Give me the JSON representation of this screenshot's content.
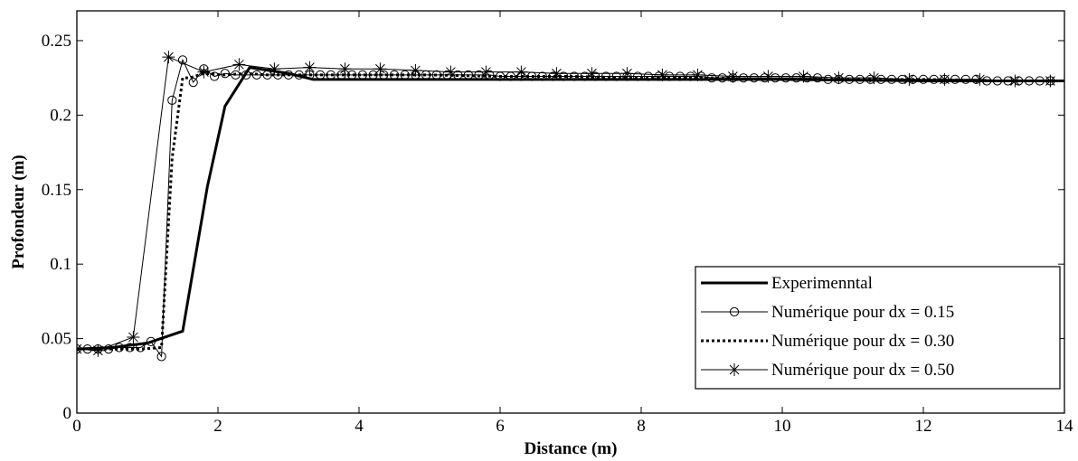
{
  "chart_data": {
    "type": "line",
    "title": "",
    "xlabel": "Distance (m)",
    "ylabel": "Profondeur (m)",
    "xlim": [
      0,
      14
    ],
    "ylim": [
      0,
      0.27
    ],
    "xticks": [
      0,
      2,
      4,
      6,
      8,
      10,
      12,
      14
    ],
    "xtick_labels": [
      "0",
      "2",
      "4",
      "6",
      "8",
      "10",
      "12",
      "14"
    ],
    "yticks": [
      0,
      0.05,
      0.1,
      0.15,
      0.2,
      0.25
    ],
    "ytick_labels": [
      "0",
      "0.05",
      "0.1",
      "0.15",
      "0.2",
      "0.25"
    ],
    "grid": false,
    "legend_position": "bottom-right",
    "series": [
      {
        "name": "Experimenntal",
        "style": "thick-solid",
        "marker": "none",
        "x": [
          0,
          0.5,
          1.0,
          1.5,
          1.85,
          2.1,
          2.45,
          3.0,
          3.35,
          4.0,
          6.0,
          8.0,
          10.0,
          12.0,
          14.0
        ],
        "y": [
          0.043,
          0.044,
          0.047,
          0.055,
          0.152,
          0.206,
          0.232,
          0.228,
          0.224,
          0.224,
          0.224,
          0.224,
          0.224,
          0.223,
          0.223
        ]
      },
      {
        "name": "Numérique pour dx = 0.15",
        "style": "thin-solid",
        "marker": "circle",
        "x": [
          0,
          0.15,
          0.3,
          0.45,
          0.6,
          0.75,
          0.9,
          1.05,
          1.2,
          1.35,
          1.5,
          1.65,
          1.8,
          1.95,
          2.1,
          2.25,
          2.4,
          2.55,
          2.7,
          2.85,
          3.0,
          3.15,
          3.3,
          3.45,
          3.6,
          3.75,
          3.9,
          4.05,
          4.2,
          4.35,
          4.5,
          4.65,
          4.8,
          4.95,
          5.1,
          5.25,
          5.4,
          5.55,
          5.7,
          5.85,
          6.0,
          6.15,
          6.3,
          6.45,
          6.6,
          6.75,
          6.9,
          7.05,
          7.2,
          7.35,
          7.5,
          7.65,
          7.8,
          7.95,
          8.1,
          8.25,
          8.4,
          8.55,
          8.7,
          8.85,
          9.0,
          9.15,
          9.3,
          9.45,
          9.6,
          9.75,
          9.9,
          10.05,
          10.2,
          10.35,
          10.5,
          10.65,
          10.8,
          10.95,
          11.1,
          11.25,
          11.4,
          11.55,
          11.7,
          11.85,
          12.0,
          12.15,
          12.3,
          12.45,
          12.6,
          12.75,
          12.9,
          13.05,
          13.2,
          13.35,
          13.5,
          13.65,
          13.8
        ],
        "y": [
          0.043,
          0.043,
          0.043,
          0.043,
          0.044,
          0.044,
          0.044,
          0.048,
          0.038,
          0.21,
          0.237,
          0.222,
          0.231,
          0.226,
          0.228,
          0.227,
          0.227,
          0.227,
          0.227,
          0.227,
          0.227,
          0.227,
          0.227,
          0.227,
          0.227,
          0.227,
          0.227,
          0.227,
          0.227,
          0.227,
          0.227,
          0.227,
          0.227,
          0.227,
          0.227,
          0.227,
          0.227,
          0.227,
          0.227,
          0.227,
          0.226,
          0.226,
          0.226,
          0.226,
          0.226,
          0.226,
          0.226,
          0.226,
          0.226,
          0.226,
          0.226,
          0.226,
          0.226,
          0.226,
          0.226,
          0.226,
          0.226,
          0.226,
          0.226,
          0.226,
          0.225,
          0.225,
          0.225,
          0.225,
          0.225,
          0.225,
          0.225,
          0.225,
          0.225,
          0.225,
          0.225,
          0.224,
          0.224,
          0.224,
          0.224,
          0.224,
          0.224,
          0.224,
          0.224,
          0.224,
          0.224,
          0.224,
          0.224,
          0.224,
          0.224,
          0.224,
          0.223,
          0.223,
          0.223,
          0.223,
          0.223,
          0.223,
          0.223
        ]
      },
      {
        "name": "Numérique pour dx = 0.30",
        "style": "thick-dotted",
        "marker": "none",
        "x": [
          0,
          0.3,
          0.6,
          0.9,
          1.2,
          1.35,
          1.5,
          1.6,
          1.8,
          2.1,
          2.4,
          2.7,
          3.0,
          3.3,
          3.6,
          4.0,
          5.0,
          6.0,
          7.0,
          8.0,
          9.0,
          10.0,
          11.0,
          12.0,
          13.0,
          14.0
        ],
        "y": [
          0.043,
          0.043,
          0.043,
          0.043,
          0.044,
          0.171,
          0.225,
          0.225,
          0.228,
          0.227,
          0.228,
          0.227,
          0.227,
          0.227,
          0.227,
          0.227,
          0.227,
          0.226,
          0.226,
          0.225,
          0.225,
          0.224,
          0.224,
          0.224,
          0.223,
          0.223
        ]
      },
      {
        "name": "Numérique pour dx = 0.50",
        "style": "thin-solid",
        "marker": "star",
        "x": [
          0,
          0.3,
          0.8,
          1.3,
          1.8,
          2.3,
          2.8,
          3.3,
          3.8,
          4.3,
          4.8,
          5.3,
          5.8,
          6.3,
          6.8,
          7.3,
          7.8,
          8.3,
          8.8,
          9.3,
          9.8,
          10.3,
          10.8,
          11.3,
          11.8,
          12.3,
          12.8,
          13.3,
          13.8
        ],
        "y": [
          0.043,
          0.042,
          0.051,
          0.239,
          0.229,
          0.234,
          0.231,
          0.232,
          0.231,
          0.231,
          0.23,
          0.229,
          0.229,
          0.229,
          0.228,
          0.228,
          0.228,
          0.227,
          0.227,
          0.226,
          0.226,
          0.226,
          0.225,
          0.225,
          0.224,
          0.224,
          0.224,
          0.223,
          0.223
        ]
      }
    ]
  }
}
